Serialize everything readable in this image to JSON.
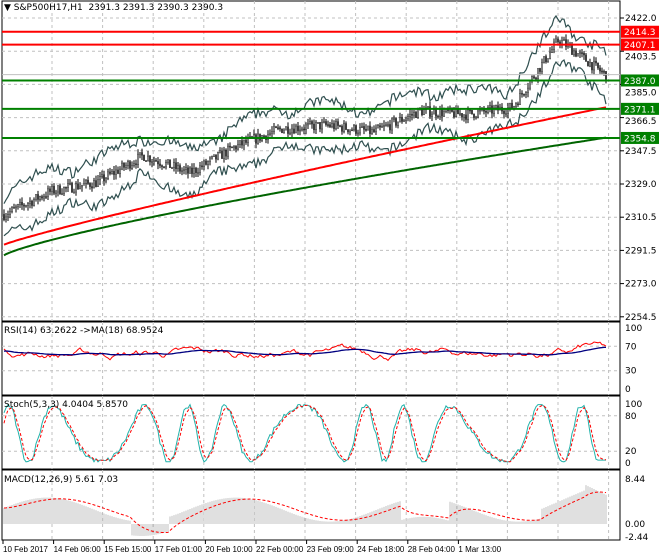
{
  "header": {
    "symbol": "S&P500H17,H1",
    "open": "2391.3",
    "high": "2391.3",
    "low": "2390.3",
    "close": "2390.3"
  },
  "colors": {
    "bull": "#000000",
    "ma_fast": "#ff0000",
    "ma_slow": "#006400",
    "band": "#2f4f4f",
    "level_red": "#ff0000",
    "level_green": "#008000",
    "rsi": "#ff0000",
    "rsi_ma": "#000080",
    "stoch_main": "#20b2aa",
    "stoch_signal": "#ff0000",
    "macd_hist": "#c0c0c0",
    "macd_signal": "#ff0000"
  },
  "chart_data": [
    {
      "type": "line",
      "title": "S&P500H17,H1",
      "ylim": [
        2254.5,
        2422.0
      ],
      "y_ticks": [
        "2422.0",
        "2403.5",
        "2385.0",
        "2366.5",
        "2347.5",
        "2329.0",
        "2310.5",
        "2291.5",
        "2273.0",
        "2254.5"
      ],
      "x_ticks": [
        "10 Feb 2017",
        "14 Feb 06:00",
        "15 Feb 15:00",
        "17 Feb 01:00",
        "20 Feb 10:00",
        "22 Feb 00:00",
        "23 Feb 09:00",
        "24 Feb 18:00",
        "28 Feb 04:00",
        "1 Mar 13:00"
      ],
      "close_series": [
        2312,
        2325,
        2330,
        2345,
        2335,
        2350,
        2360,
        2362,
        2358,
        2370,
        2368,
        2372,
        2410,
        2390.3
      ],
      "ma_fast": [
        2295,
        2372
      ],
      "ma_slow": [
        2289,
        2355
      ],
      "levels": [
        {
          "value": "2414.3",
          "color": "red"
        },
        {
          "value": "2407.1",
          "color": "red"
        },
        {
          "value": "2387.0",
          "color": "green"
        },
        {
          "value": "2371.1",
          "color": "green"
        },
        {
          "value": "2354.8",
          "color": "green"
        }
      ],
      "current_price": "2390.3"
    },
    {
      "type": "line",
      "title": "RSI(14) 63.2622  ->MA(18) 68.9524",
      "ylim": [
        0,
        100
      ],
      "y_ticks": [
        "100",
        "70",
        "30",
        "0"
      ],
      "last_rsi": 63.2622,
      "last_ma": 68.9524
    },
    {
      "type": "line",
      "title": "Stoch(5,3,3) 4.0404 5.8570",
      "ylim": [
        0,
        100
      ],
      "y_ticks": [
        "100",
        "80",
        "20",
        "0"
      ],
      "last_main": 4.0404,
      "last_signal": 5.857
    },
    {
      "type": "bar",
      "title": "MACD(12,26,9) 5.61 7.03",
      "ylim": [
        -2.44,
        8.44
      ],
      "y_ticks": [
        "8.44",
        "0.00",
        "-2.44"
      ],
      "last_macd": 5.61,
      "last_signal": 7.03
    }
  ]
}
